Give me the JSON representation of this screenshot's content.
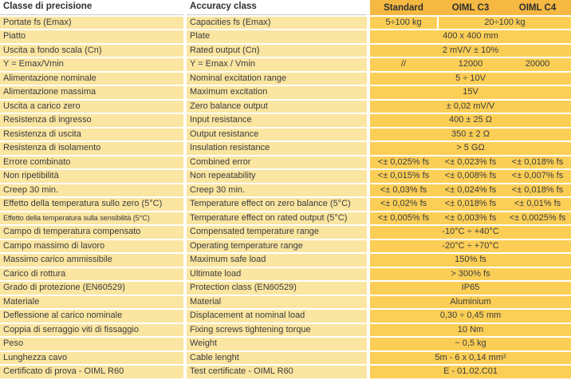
{
  "colors": {
    "label_bg": "#FAE5A1",
    "value_bg": "#FBCE56",
    "header_bg": "#F4B843",
    "text": "#3C3C3C"
  },
  "header": {
    "col_it": "Classe di precisione",
    "col_en": "Accuracy class",
    "col_standard": "Standard",
    "col_c3": "OIML C3",
    "col_c4": "OIML C4"
  },
  "rows": [
    {
      "it": "Portate fs (Emax)",
      "en": "Capacities fs (Emax)",
      "values": {
        "kind": "split2",
        "standard": "5÷100 kg",
        "c3c4": "20÷100 kg"
      }
    },
    {
      "it": "Piatto",
      "en": "Plate",
      "values": {
        "kind": "merged",
        "all": "400 x 400 mm"
      }
    },
    {
      "it": "Uscita a fondo scala (Cn)",
      "en": "Rated output (Cn)",
      "values": {
        "kind": "merged",
        "all": "2 mV/V ± 10%"
      }
    },
    {
      "it": "Y = Emax/Vmin",
      "en": "Y = Emax / Vmin",
      "values": {
        "kind": "three",
        "standard": "//",
        "c3": "12000",
        "c4": "20000"
      }
    },
    {
      "it": "Alimentazione nominale",
      "en": "Nominal excitation range",
      "values": {
        "kind": "merged",
        "all": "5 ÷ 10V"
      }
    },
    {
      "it": "Alimentazione massima",
      "en": "Maximum excitation",
      "values": {
        "kind": "merged",
        "all": "15V"
      }
    },
    {
      "it": "Uscita a carico zero",
      "en": "Zero balance output",
      "values": {
        "kind": "merged",
        "all": "± 0,02 mV/V"
      }
    },
    {
      "it": "Resistenza di ingresso",
      "en": "Input resistance",
      "values": {
        "kind": "merged",
        "all": "400 ± 25 Ω"
      }
    },
    {
      "it": "Resistenza di uscita",
      "en": "Output resistance",
      "values": {
        "kind": "merged",
        "all": "350 ± 2 Ω"
      }
    },
    {
      "it": "Resistenza di isolamento",
      "en": "Insulation resistance",
      "values": {
        "kind": "merged",
        "all": "> 5 GΩ"
      }
    },
    {
      "it": "Errore combinato",
      "en": "Combined error",
      "values": {
        "kind": "three",
        "standard": "<± 0,025% fs",
        "c3": "<± 0,023% fs",
        "c4": "<± 0,018% fs"
      }
    },
    {
      "it": "Non ripetibilità",
      "en": "Non repeatability",
      "values": {
        "kind": "three",
        "standard": "<± 0,015% fs",
        "c3": "<± 0,008% fs",
        "c4": "<± 0,007% fs"
      }
    },
    {
      "it": "Creep 30 min.",
      "en": "Creep 30 min.",
      "values": {
        "kind": "three",
        "standard": "<± 0,03% fs",
        "c3": "<± 0,024% fs",
        "c4": "<± 0,018% fs"
      }
    },
    {
      "it": "Effetto della temperatura sullo zero (5°C)",
      "en": "Temperature effect on zero balance (5°C)",
      "values": {
        "kind": "three",
        "standard": "<± 0,02% fs",
        "c3": "<± 0,018% fs",
        "c4": "<± 0,01% fs"
      }
    },
    {
      "it": "Effetto della temperatura sulla sensibilità (5°C)",
      "en": "Temperature effect on rated output (5°C)",
      "values": {
        "kind": "three",
        "standard": "<± 0,005% fs",
        "c3": "<± 0,003% fs",
        "c4": "<± 0,0025% fs"
      }
    },
    {
      "it": "Campo di temperatura compensato",
      "en": "Compensated temperature range",
      "values": {
        "kind": "merged",
        "all": "-10°C ÷ +40°C"
      }
    },
    {
      "it": "Campo massimo di lavoro",
      "en": "Operating temperature range",
      "values": {
        "kind": "merged",
        "all": "-20°C ÷ +70°C"
      }
    },
    {
      "it": "Massimo carico ammissibile",
      "en": "Maximum safe load",
      "values": {
        "kind": "merged",
        "all": "150% fs"
      }
    },
    {
      "it": "Carico di rottura",
      "en": "Ultimate load",
      "values": {
        "kind": "merged",
        "all": "> 300% fs"
      }
    },
    {
      "it": "Grado di protezione (EN60529)",
      "en": "Protection class (EN60529)",
      "values": {
        "kind": "merged",
        "all": "IP65"
      }
    },
    {
      "it": "Materiale",
      "en": "Material",
      "values": {
        "kind": "merged",
        "all": "Aluminium"
      }
    },
    {
      "it": "Deflessione al carico nominale",
      "en": "Displacement at nominal load",
      "values": {
        "kind": "merged",
        "all": "0,30 ÷ 0,45 mm"
      }
    },
    {
      "it": "Coppia di serraggio viti di fissaggio",
      "en": "Fixing screws tightening torque",
      "values": {
        "kind": "merged",
        "all": "10 Nm"
      }
    },
    {
      "it": "Peso",
      "en": "Weight",
      "values": {
        "kind": "merged",
        "all": "~ 0,5 kg"
      }
    },
    {
      "it": "Lunghezza cavo",
      "en": "Cable lenght",
      "values": {
        "kind": "merged",
        "all": "5m - 6 x 0,14 mm²"
      }
    },
    {
      "it": "Certificato di prova - OIML R60",
      "en": "Test certificate - OIML R60",
      "values": {
        "kind": "merged",
        "all": "E - 01.02.C01"
      }
    }
  ]
}
